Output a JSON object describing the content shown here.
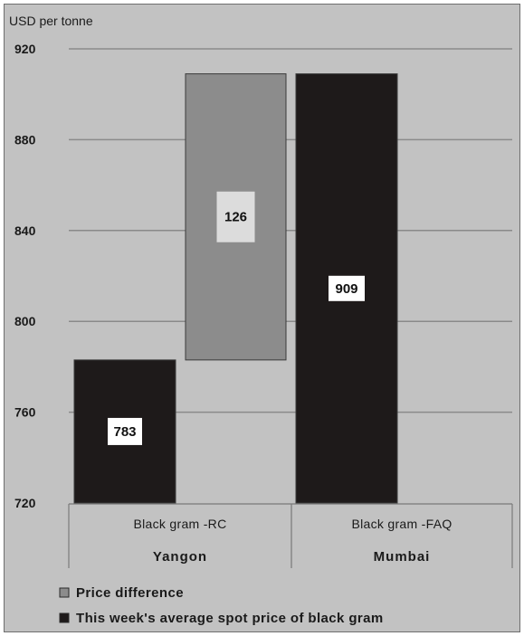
{
  "chart_data": {
    "type": "bar",
    "ylabel": "USD per tonne",
    "ylim": [
      720,
      920
    ],
    "yticks": [
      720,
      760,
      800,
      840,
      880,
      920
    ],
    "grid": true,
    "groups": [
      {
        "name": "Yangon",
        "categories": [
          "Black gram -RC"
        ]
      },
      {
        "name": "Mumbai",
        "categories": [
          "Black gram -FAQ"
        ]
      }
    ],
    "bars": [
      {
        "series": "This week's average spot price of black gram",
        "category": "Black gram -RC",
        "base": 720,
        "value": 783,
        "label": "783"
      },
      {
        "series": "Price difference",
        "category": "between",
        "base": 783,
        "value": 909,
        "label": "126"
      },
      {
        "series": "This week's average spot price of black gram",
        "category": "Black gram -FAQ",
        "base": 720,
        "value": 909,
        "label": "909"
      }
    ],
    "legend": [
      {
        "name": "Price difference",
        "color": "#8c8c8c"
      },
      {
        "name": "This week's average spot price of black gram",
        "color": "#1e1a1a"
      }
    ],
    "legend_position": "bottom"
  },
  "colors": {
    "background": "#c2c2c2",
    "price_bar": "#1e1a1a",
    "difference_bar": "#8c8c8c",
    "grid": "#8a8a8a"
  }
}
